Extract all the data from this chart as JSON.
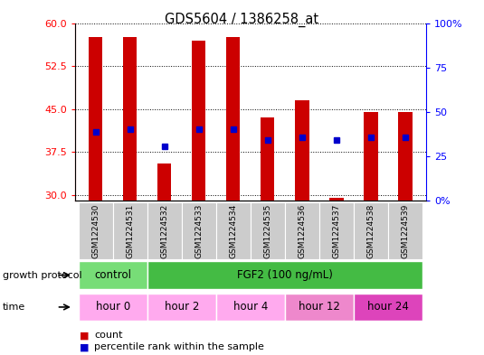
{
  "title": "GDS5604 / 1386258_at",
  "samples": [
    "GSM1224530",
    "GSM1224531",
    "GSM1224532",
    "GSM1224533",
    "GSM1224534",
    "GSM1224535",
    "GSM1224536",
    "GSM1224537",
    "GSM1224538",
    "GSM1224539"
  ],
  "bar_bottom": 29,
  "count_values": [
    57.5,
    57.5,
    35.5,
    57.0,
    57.5,
    43.5,
    46.5,
    29.5,
    44.5,
    44.5
  ],
  "percentile_values": [
    41.0,
    41.5,
    38.5,
    41.5,
    41.5,
    39.5,
    40.0,
    39.5,
    40.0,
    40.0
  ],
  "ylim_left": [
    29,
    60
  ],
  "ylim_right": [
    0,
    100
  ],
  "yticks_left": [
    30,
    37.5,
    45,
    52.5,
    60
  ],
  "yticks_right": [
    0,
    25,
    50,
    75,
    100
  ],
  "ytick_labels_right": [
    "0%",
    "25",
    "50",
    "75",
    "100%"
  ],
  "bar_color": "#cc0000",
  "percentile_color": "#0000cc",
  "protocol_row": {
    "control_cols": [
      0,
      1
    ],
    "fgf2_cols": [
      2,
      3,
      4,
      5,
      6,
      7,
      8,
      9
    ],
    "control_label": "control",
    "fgf2_label": "FGF2 (100 ng/mL)",
    "control_color": "#77dd77",
    "fgf2_color": "#44bb44"
  },
  "time_row": {
    "groups": [
      {
        "cols": [
          0,
          1
        ],
        "label": "hour 0",
        "color": "#ffaaee"
      },
      {
        "cols": [
          2,
          3
        ],
        "label": "hour 2",
        "color": "#ffaaee"
      },
      {
        "cols": [
          4,
          5
        ],
        "label": "hour 4",
        "color": "#ffaaee"
      },
      {
        "cols": [
          6,
          7
        ],
        "label": "hour 12",
        "color": "#ee88cc"
      },
      {
        "cols": [
          8,
          9
        ],
        "label": "hour 24",
        "color": "#dd44bb"
      }
    ]
  },
  "legend_count_label": "count",
  "legend_pct_label": "percentile rank within the sample",
  "growth_protocol_label": "growth protocol",
  "time_label": "time"
}
